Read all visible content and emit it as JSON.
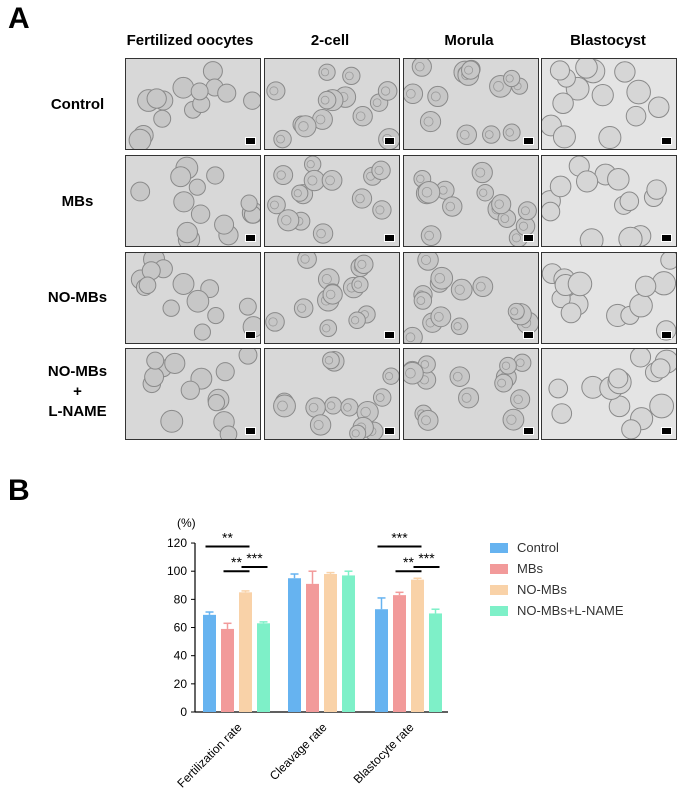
{
  "panel_a": {
    "label": "A"
  },
  "panel_b": {
    "label": "B"
  },
  "columns": [
    "Fertilized oocytes",
    "2-cell",
    "Morula",
    "Blastocyst"
  ],
  "rows": [
    {
      "line1": "Control",
      "line2": "",
      "line3": ""
    },
    {
      "line1": "MBs",
      "line2": "",
      "line3": ""
    },
    {
      "line1": "NO-MBs",
      "line2": "",
      "line3": ""
    },
    {
      "line1": "NO-MBs",
      "line2": "+",
      "line3": "L-NAME"
    }
  ],
  "colors": {
    "Control": "#66b3f0",
    "MBs": "#f29a9a",
    "NO-MBs": "#f9d2a8",
    "NO-MBs+L-NAME": "#7ef0c8"
  },
  "chart_data": {
    "type": "bar",
    "ylabel": "(%)",
    "ylim": [
      0,
      120
    ],
    "yticks": [
      "0",
      "20",
      "40",
      "60",
      "80",
      "100",
      "120"
    ],
    "categories": [
      "Fertilization rate",
      "Cleavage rate",
      "Blastocyte rate"
    ],
    "series": [
      {
        "name": "Control",
        "values": [
          69,
          95,
          73
        ],
        "errors": [
          2,
          3,
          8
        ]
      },
      {
        "name": "MBs",
        "values": [
          59,
          91,
          83
        ],
        "errors": [
          4,
          9,
          2
        ]
      },
      {
        "name": "NO-MBs",
        "values": [
          85,
          98,
          94
        ],
        "errors": [
          1,
          1,
          1
        ]
      },
      {
        "name": "NO-MBs+L-NAME",
        "values": [
          63,
          97,
          70
        ],
        "errors": [
          1,
          3,
          3
        ]
      }
    ],
    "significance": [
      {
        "category": 0,
        "from": 0,
        "to": 2,
        "label": "**",
        "level": 0
      },
      {
        "category": 0,
        "from": 1,
        "to": 2,
        "label": "**",
        "level": 1
      },
      {
        "category": 0,
        "from": 2,
        "to": 3,
        "label": "***",
        "level": 2
      },
      {
        "category": 2,
        "from": 0,
        "to": 2,
        "label": "***",
        "level": 0
      },
      {
        "category": 2,
        "from": 1,
        "to": 2,
        "label": "**",
        "level": 1
      },
      {
        "category": 2,
        "from": 2,
        "to": 3,
        "label": "***",
        "level": 2
      }
    ],
    "legend": [
      "Control",
      "MBs",
      "NO-MBs",
      "NO-MBs+L-NAME"
    ],
    "legend_position": "right"
  }
}
